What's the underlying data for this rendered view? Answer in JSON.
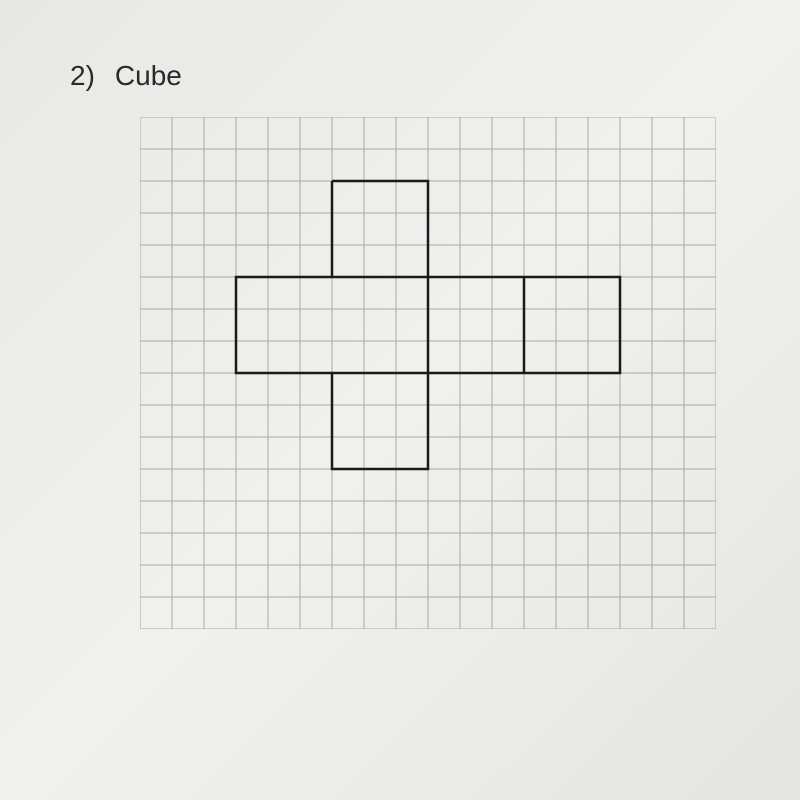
{
  "question": {
    "number": "2)",
    "title": "Cube"
  },
  "grid": {
    "cell_size": 32,
    "cols": 18,
    "rows": 16,
    "grid_line_color": "#a8a8a5",
    "grid_line_width": 1,
    "background_color": "transparent",
    "shape_line_color": "#1a1a1a",
    "shape_line_width": 2.5
  },
  "cube_net": {
    "type": "net",
    "description": "Cross/plus shaped cube net",
    "face_size": 3,
    "faces": [
      {
        "name": "top",
        "col": 6,
        "row": 2,
        "w": 3,
        "h": 3
      },
      {
        "name": "left",
        "col": 3,
        "row": 5,
        "w": 3,
        "h": 3
      },
      {
        "name": "front",
        "col": 6,
        "row": 5,
        "w": 3,
        "h": 3
      },
      {
        "name": "right1",
        "col": 9,
        "row": 5,
        "w": 3,
        "h": 3
      },
      {
        "name": "right2",
        "col": 12,
        "row": 5,
        "w": 3,
        "h": 3
      },
      {
        "name": "bottom",
        "col": 6,
        "row": 8,
        "w": 3,
        "h": 3
      }
    ],
    "outline_path": [
      [
        6,
        2
      ],
      [
        9,
        2
      ],
      [
        9,
        5
      ],
      [
        15,
        5
      ],
      [
        15,
        8
      ],
      [
        9,
        8
      ],
      [
        9,
        11
      ],
      [
        6,
        11
      ],
      [
        6,
        8
      ],
      [
        3,
        8
      ],
      [
        3,
        5
      ],
      [
        6,
        5
      ],
      [
        6,
        2
      ]
    ],
    "inner_lines": [
      [
        [
          6,
          5
        ],
        [
          9,
          5
        ]
      ],
      [
        [
          6,
          8
        ],
        [
          9,
          8
        ]
      ],
      [
        [
          9,
          5
        ],
        [
          9,
          8
        ]
      ],
      [
        [
          12,
          5
        ],
        [
          12,
          8
        ]
      ]
    ]
  }
}
